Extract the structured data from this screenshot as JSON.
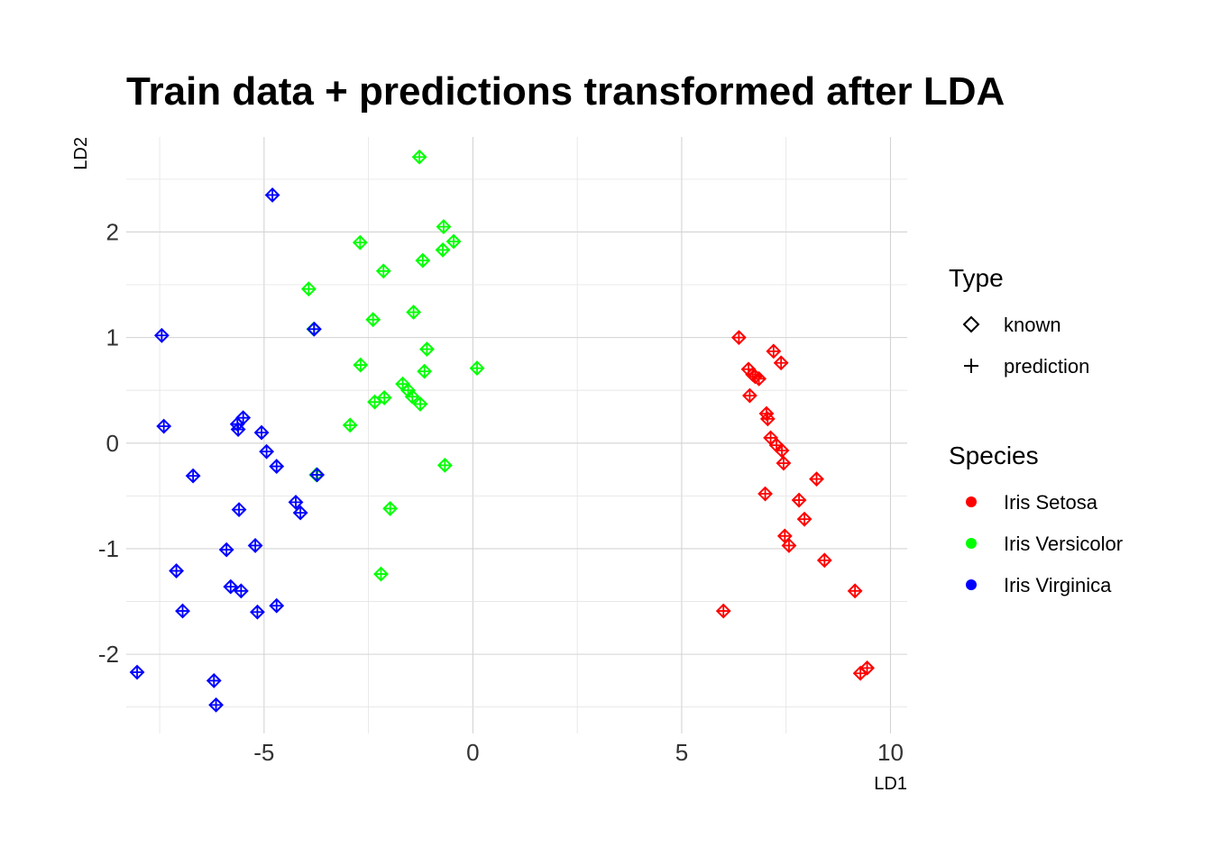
{
  "chart_data": {
    "type": "scatter",
    "title": "Train data + predictions transformed after LDA",
    "xlabel": "LD1",
    "ylabel": "LD2",
    "xlim": [
      -8.3,
      10.4
    ],
    "ylim": [
      -2.75,
      2.9
    ],
    "x_ticks": [
      -5,
      0,
      5,
      10
    ],
    "x_tick_labels": [
      "-5",
      "0",
      "5",
      "10"
    ],
    "y_ticks": [
      -2,
      -1,
      0,
      1,
      2
    ],
    "y_tick_labels": [
      "-2",
      "-1",
      "0",
      "1",
      "2"
    ],
    "grid": true,
    "legend_position": "right",
    "legend": {
      "type_title": "Type",
      "type_entries": [
        {
          "label": "known",
          "shape": "diamond"
        },
        {
          "label": "prediction",
          "shape": "plus"
        }
      ],
      "species_title": "Species",
      "species_entries": [
        {
          "label": "Iris Setosa",
          "color": "#ff0000"
        },
        {
          "label": "Iris Versicolor",
          "color": "#00ff00"
        },
        {
          "label": "Iris Virginica",
          "color": "#0000ff"
        }
      ]
    },
    "series": [
      {
        "name": "Iris Setosa",
        "color": "#ff0000",
        "points": [
          [
            6.37,
            1.0
          ],
          [
            7.2,
            0.87
          ],
          [
            7.38,
            0.76
          ],
          [
            6.6,
            0.7
          ],
          [
            6.7,
            0.65
          ],
          [
            6.76,
            0.63
          ],
          [
            6.85,
            0.61
          ],
          [
            6.63,
            0.45
          ],
          [
            7.03,
            0.28
          ],
          [
            7.06,
            0.23
          ],
          [
            7.13,
            0.05
          ],
          [
            7.27,
            -0.02
          ],
          [
            7.4,
            -0.07
          ],
          [
            7.44,
            -0.19
          ],
          [
            8.23,
            -0.34
          ],
          [
            7.0,
            -0.48
          ],
          [
            7.81,
            -0.54
          ],
          [
            7.94,
            -0.72
          ],
          [
            7.47,
            -0.88
          ],
          [
            7.57,
            -0.97
          ],
          [
            8.42,
            -1.11
          ],
          [
            9.15,
            -1.4
          ],
          [
            6.0,
            -1.59
          ],
          [
            9.28,
            -2.18
          ],
          [
            9.44,
            -2.13
          ]
        ]
      },
      {
        "name": "Iris Versicolor",
        "color": "#00ff00",
        "points": [
          [
            -1.28,
            2.71
          ],
          [
            -0.7,
            2.05
          ],
          [
            -0.46,
            1.91
          ],
          [
            -0.72,
            1.83
          ],
          [
            -2.7,
            1.9
          ],
          [
            -2.14,
            1.63
          ],
          [
            -1.2,
            1.73
          ],
          [
            -3.93,
            1.46
          ],
          [
            -1.42,
            1.24
          ],
          [
            -2.39,
            1.17
          ],
          [
            -1.1,
            0.89
          ],
          [
            -2.69,
            0.74
          ],
          [
            -1.16,
            0.68
          ],
          [
            0.1,
            0.71
          ],
          [
            -1.68,
            0.56
          ],
          [
            -1.55,
            0.5
          ],
          [
            -1.45,
            0.44
          ],
          [
            -1.26,
            0.37
          ],
          [
            -2.12,
            0.43
          ],
          [
            -2.35,
            0.39
          ],
          [
            -2.94,
            0.17
          ],
          [
            -0.67,
            -0.21
          ],
          [
            -1.98,
            -0.62
          ],
          [
            -2.2,
            -1.24
          ],
          [
            -3.75,
            -0.3
          ],
          [
            -3.81,
            1.08
          ]
        ]
      },
      {
        "name": "Iris Virginica",
        "color": "#0000ff",
        "points": [
          [
            -4.8,
            2.35
          ],
          [
            -3.8,
            1.08
          ],
          [
            -7.45,
            1.02
          ],
          [
            -7.4,
            0.16
          ],
          [
            -5.5,
            0.24
          ],
          [
            -5.64,
            0.18
          ],
          [
            -5.62,
            0.13
          ],
          [
            -5.06,
            0.1
          ],
          [
            -4.94,
            -0.08
          ],
          [
            -4.7,
            -0.22
          ],
          [
            -6.7,
            -0.31
          ],
          [
            -3.73,
            -0.3
          ],
          [
            -4.24,
            -0.56
          ],
          [
            -4.13,
            -0.66
          ],
          [
            -5.6,
            -0.63
          ],
          [
            -5.21,
            -0.97
          ],
          [
            -5.9,
            -1.01
          ],
          [
            -7.1,
            -1.21
          ],
          [
            -5.8,
            -1.36
          ],
          [
            -5.55,
            -1.4
          ],
          [
            -6.95,
            -1.59
          ],
          [
            -5.16,
            -1.6
          ],
          [
            -4.7,
            -1.54
          ],
          [
            -8.04,
            -2.17
          ],
          [
            -6.2,
            -2.25
          ],
          [
            -6.15,
            -2.48
          ]
        ]
      }
    ]
  }
}
